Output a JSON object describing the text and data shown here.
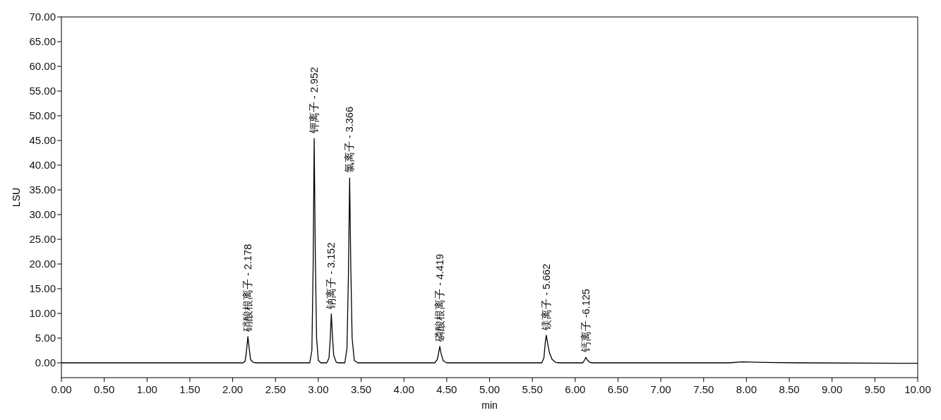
{
  "chart_data": {
    "type": "line",
    "xlabel": "min",
    "ylabel": "LSU",
    "series": [
      {
        "color": "#000000",
        "x": [
          0,
          1.0,
          2.12,
          2.145,
          2.16,
          2.178,
          2.195,
          2.21,
          2.24,
          2.28,
          2.9,
          2.925,
          2.94,
          2.952,
          2.965,
          2.98,
          3.0,
          3.03,
          3.1,
          3.125,
          3.14,
          3.152,
          3.165,
          3.18,
          3.21,
          3.24,
          3.31,
          3.335,
          3.352,
          3.366,
          3.38,
          3.395,
          3.42,
          3.46,
          4.36,
          4.39,
          4.405,
          4.419,
          4.435,
          4.46,
          4.5,
          5.61,
          5.635,
          5.65,
          5.662,
          5.68,
          5.7,
          5.73,
          5.77,
          5.82,
          6.09,
          6.11,
          6.125,
          6.14,
          6.17,
          6.2,
          7.8,
          7.95,
          8.2,
          8.6,
          10.0
        ],
        "values": [
          0,
          0,
          0,
          0.3,
          2.2,
          5.3,
          2.6,
          0.6,
          0.1,
          0,
          0,
          2.5,
          20,
          45.4,
          22,
          5,
          0.5,
          0,
          0,
          1,
          5,
          9.9,
          5.5,
          1.5,
          0.1,
          0,
          0,
          3,
          18,
          37.4,
          19,
          5,
          0.5,
          0,
          0,
          0.7,
          2,
          3.3,
          1.8,
          0.4,
          0,
          0,
          1.0,
          4.0,
          5.6,
          3.8,
          2.0,
          0.7,
          0.1,
          0,
          0,
          0.6,
          1.1,
          0.6,
          0.1,
          0,
          0,
          0.2,
          0.1,
          0,
          -0.1
        ]
      }
    ],
    "xlim": [
      0,
      10
    ],
    "ylim": [
      -3,
      70
    ],
    "xticks": [
      {
        "value": 0,
        "label": "0.00"
      },
      {
        "value": 0.5,
        "label": "0.50"
      },
      {
        "value": 1,
        "label": "1.00"
      },
      {
        "value": 1.5,
        "label": "1.50"
      },
      {
        "value": 2,
        "label": "2.00"
      },
      {
        "value": 2.5,
        "label": "2.50"
      },
      {
        "value": 3,
        "label": "3.00"
      },
      {
        "value": 3.5,
        "label": "3.50"
      },
      {
        "value": 4,
        "label": "4.00"
      },
      {
        "value": 4.5,
        "label": "4.50"
      },
      {
        "value": 5,
        "label": "5.00"
      },
      {
        "value": 5.5,
        "label": "5.50"
      },
      {
        "value": 6,
        "label": "6.00"
      },
      {
        "value": 6.5,
        "label": "6.50"
      },
      {
        "value": 7,
        "label": "7.00"
      },
      {
        "value": 7.5,
        "label": "7.50"
      },
      {
        "value": 8,
        "label": "8.00"
      },
      {
        "value": 8.5,
        "label": "8.50"
      },
      {
        "value": 9,
        "label": "9.00"
      },
      {
        "value": 9.5,
        "label": "9.50"
      },
      {
        "value": 10,
        "label": "10.00"
      }
    ],
    "yticks": [
      {
        "value": 0,
        "label": "0.00"
      },
      {
        "value": 5,
        "label": "5.00"
      },
      {
        "value": 10,
        "label": "10.00"
      },
      {
        "value": 15,
        "label": "15.00"
      },
      {
        "value": 20,
        "label": "20.00"
      },
      {
        "value": 25,
        "label": "25.00"
      },
      {
        "value": 30,
        "label": "30.00"
      },
      {
        "value": 35,
        "label": "35.00"
      },
      {
        "value": 40,
        "label": "40.00"
      },
      {
        "value": 45,
        "label": "45.00"
      },
      {
        "value": 50,
        "label": "50.00"
      },
      {
        "value": 55,
        "label": "55.00"
      },
      {
        "value": 60,
        "label": "60.00"
      },
      {
        "value": 65,
        "label": "65.00"
      },
      {
        "value": 70,
        "label": "70.00"
      }
    ],
    "annotations": [
      {
        "text": "硝酸根离子 - 2.178",
        "x": 2.178,
        "y": 5.3
      },
      {
        "text": "钾离子 - 2.952",
        "x": 2.952,
        "y": 45.4
      },
      {
        "text": "钠离子 - 3.152",
        "x": 3.152,
        "y": 9.9
      },
      {
        "text": "氯离子 - 3.366",
        "x": 3.366,
        "y": 37.4
      },
      {
        "text": "磷酸根离子 - 4.419",
        "x": 4.419,
        "y": 3.3
      },
      {
        "text": "镁离子 - 5.662",
        "x": 5.662,
        "y": 5.6
      },
      {
        "text": "钙离子 -6.125",
        "x": 6.125,
        "y": 1.1
      }
    ],
    "marker": "none",
    "line_style": "solid"
  }
}
